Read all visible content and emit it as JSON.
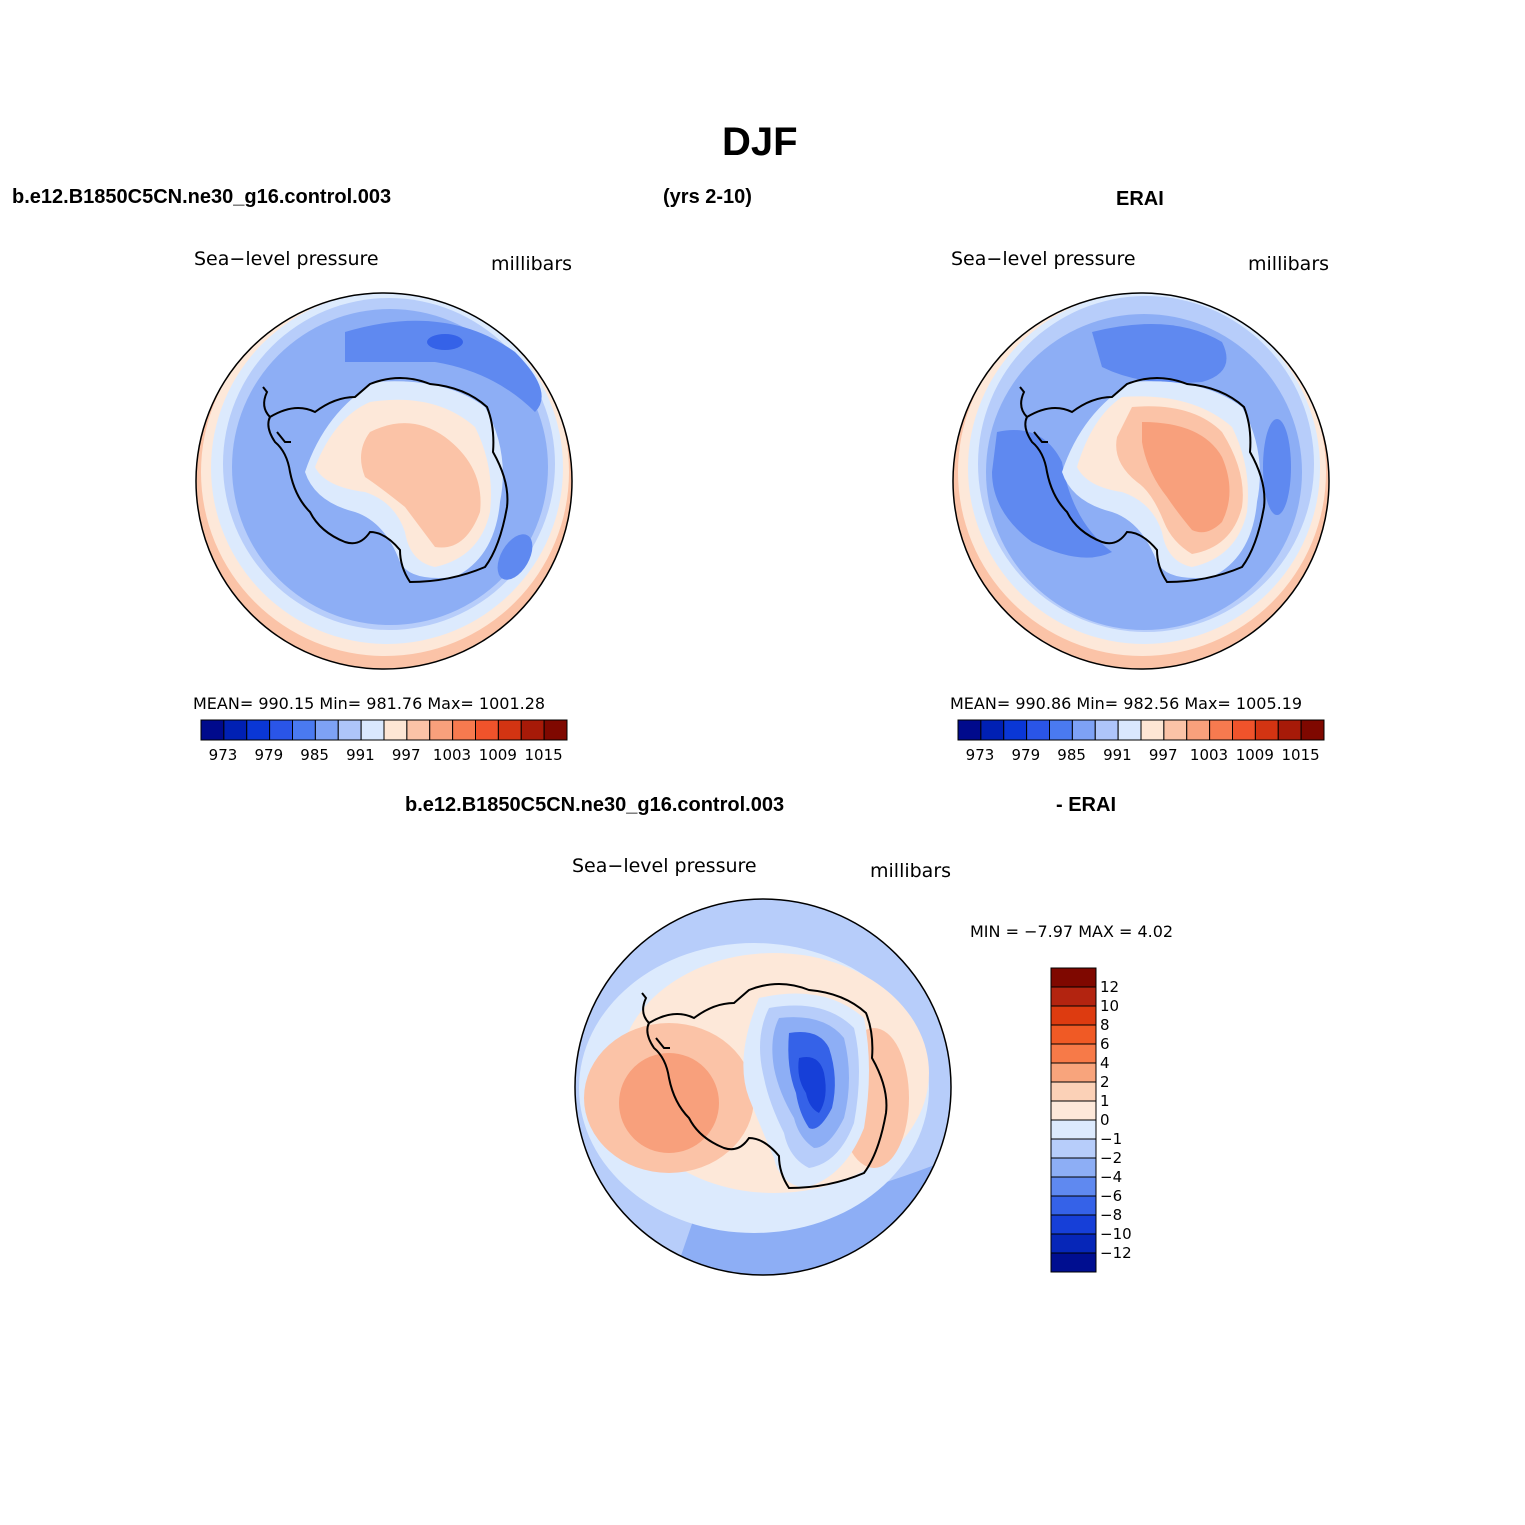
{
  "title": "DJF",
  "header": {
    "case_name": "b.e12.B1850C5CN.ne30_g16.control.003",
    "years": "(yrs 2-10)",
    "obs_name": "ERAI"
  },
  "diff_header": {
    "case_name": "b.e12.B1850C5CN.ne30_g16.control.003",
    "minus_obs": "- ERAI"
  },
  "panels": [
    {
      "variable": "Sea−level pressure",
      "units": "millibars",
      "stats": "MEAN=  990.15    Min=  981.76    Max=  1001.28"
    },
    {
      "variable": "Sea−level pressure",
      "units": "millibars",
      "stats": "MEAN=  990.86    Min=  982.56    Max=  1005.19"
    },
    {
      "variable": "Sea−level pressure",
      "units": "millibars",
      "stats": "MIN =   −7.97  MAX =     4.02"
    }
  ],
  "colorbar_levels": [
    "973",
    "979",
    "985",
    "991",
    "997",
    "1003",
    "1009",
    "1015"
  ],
  "colorbar_colors": [
    "#000a8c",
    "#0020b4",
    "#0a37d6",
    "#2a55e8",
    "#4a7af0",
    "#7ea2f5",
    "#aec5fa",
    "#d9e8fd",
    "#fde6d4",
    "#fbc3a7",
    "#f8a07c",
    "#f77a4f",
    "#f0532b",
    "#d33412",
    "#a71a08",
    "#7f0800"
  ],
  "diff_levels": [
    "12",
    "10",
    "8",
    "6",
    "4",
    "2",
    "1",
    "0",
    "−1",
    "−2",
    "−4",
    "−6",
    "−8",
    "−10",
    "−12"
  ],
  "diff_colors": [
    "#7f0800",
    "#b32410",
    "#dd3b10",
    "#f05a25",
    "#f77a48",
    "#f8a47c",
    "#fbd1b7",
    "#fde8d9",
    "#dceafd",
    "#b7cdfa",
    "#8daef5",
    "#5f89f0",
    "#3562e8",
    "#163fd8",
    "#0626b8",
    "#000e90"
  ],
  "map_colors": {
    "low_strong": "#3562e8",
    "low_mid": "#5f89f0",
    "low_weak": "#8daef5",
    "near_zero_blue": "#b7cdfa",
    "pale_blue": "#dceafd",
    "pale_orange": "#fde8d9",
    "light_orange": "#fbc3a7",
    "mid_orange": "#f8a07c",
    "coast": "#000000"
  }
}
